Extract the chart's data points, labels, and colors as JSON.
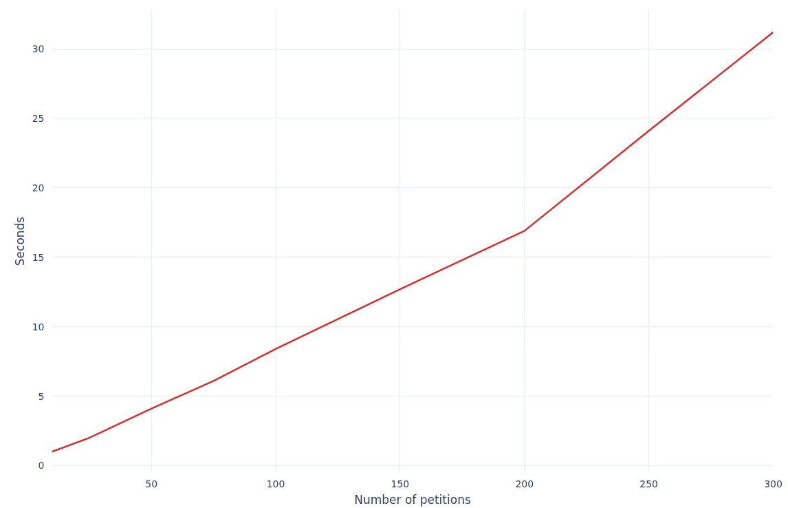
{
  "chart_data": {
    "type": "line",
    "xlabel": "Number of petitions",
    "ylabel": "Seconds",
    "x": [
      10,
      25,
      50,
      75,
      100,
      150,
      200,
      250,
      300
    ],
    "series": [
      {
        "color": "#d62f2f",
        "values": [
          1.0,
          2.0,
          4.1,
          6.1,
          8.4,
          12.7,
          16.9,
          24.1,
          31.2
        ]
      }
    ],
    "xlim": [
      10,
      300
    ],
    "ylim": [
      -0.5,
      32.8
    ],
    "xticks": [
      50,
      100,
      150,
      200,
      250,
      300
    ],
    "yticks": [
      0,
      5,
      10,
      15,
      20,
      25,
      30
    ],
    "grid": true,
    "marker": "none",
    "line_style": "solid"
  }
}
